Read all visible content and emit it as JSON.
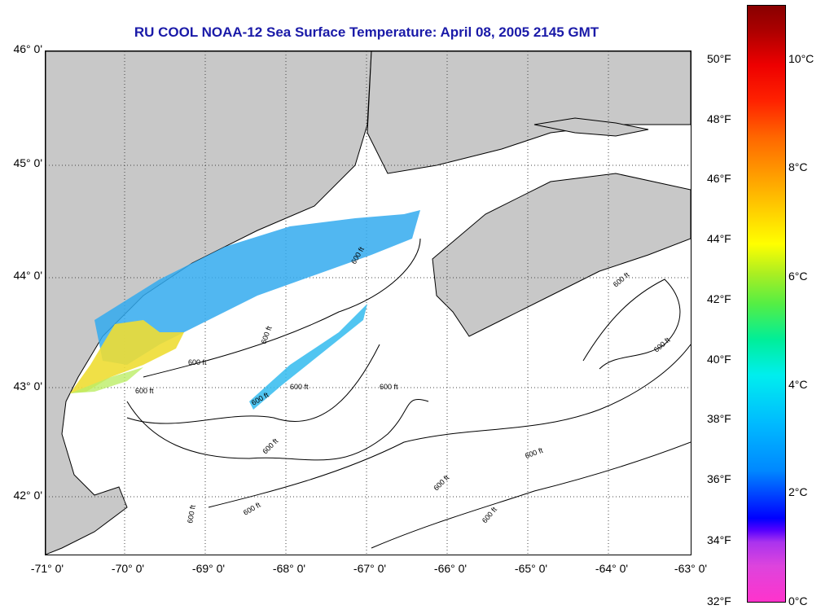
{
  "title": "RU COOL  NOAA-12  Sea Surface Temperature:  April 08, 2005 2145 GMT",
  "lat_labels": [
    "46° 0'",
    "45° 0'",
    "44° 0'",
    "43° 0'",
    "42° 0'"
  ],
  "lon_labels": [
    "-71° 0'",
    "-70° 0'",
    "-69° 0'",
    "-68° 0'",
    "-67° 0'",
    "-66° 0'",
    "-65° 0'",
    "-64° 0'",
    "-63° 0'"
  ],
  "fahrenheit_labels": [
    "50°F",
    "48°F",
    "46°F",
    "44°F",
    "42°F",
    "40°F",
    "38°F",
    "36°F",
    "34°F",
    "32°F"
  ],
  "celsius_labels": [
    "10°C",
    "8°C",
    "6°C",
    "4°C",
    "2°C",
    "0°C"
  ],
  "contour_label": "600 ft",
  "colors": {
    "land": "#c8c8c8",
    "title": "#1a1aa8",
    "sst_cold": "#33aaee",
    "sst_warm": "#eedd33"
  }
}
